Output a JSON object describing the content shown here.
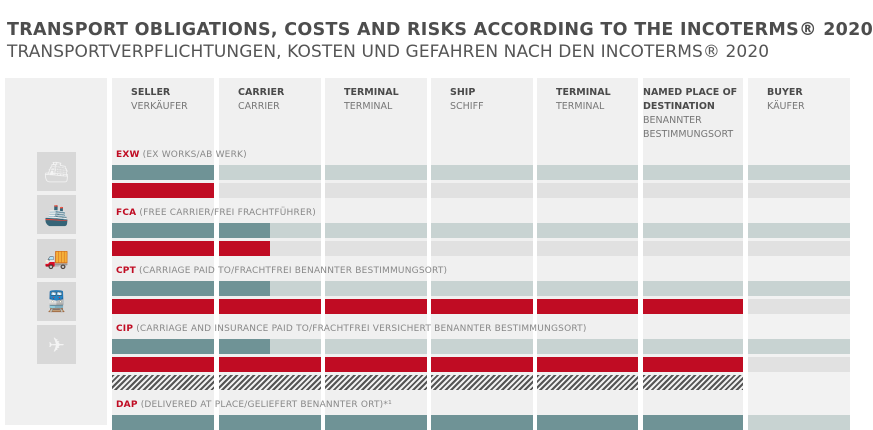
{
  "title": "TRANSPORT OBLIGATIONS, COSTS AND RISKS ACCORDING TO THE INCOTERMS® 2020",
  "subtitle": "TRANSPORTVERPFLICHTUNGEN, KOSTEN UND GEFAHREN NACH DEN INCOTERMS® 2020",
  "colors": {
    "cost": "#6f9396",
    "cost_light": "#c8d3d2",
    "risk": "#c00c23",
    "risk_light": "#e1e1e1",
    "column": "#f0f0f0"
  },
  "columns": [
    {
      "en": "SELLER",
      "de": "VERKÄUFER"
    },
    {
      "en": "CARRIER",
      "de": "CARRIER"
    },
    {
      "en": "TERMINAL",
      "de": "TERMINAL"
    },
    {
      "en": "SHIP",
      "de": "SCHIFF"
    },
    {
      "en": "TERMINAL",
      "de": "TERMINAL"
    },
    {
      "en": "NAMED PLACE OF DESTINATION",
      "de": "BENANNTER BESTIMMUNGSORT"
    },
    {
      "en": "BUYER",
      "de": "KÄUFER"
    }
  ],
  "transport_icons": [
    "ship-icon",
    "ferry-icon",
    "truck-icon",
    "train-icon",
    "airplane-icon"
  ],
  "incoterms": [
    {
      "code": "EXW",
      "desc": " (EX WORKS/AB WERK)",
      "bars": [
        {
          "type": "cost",
          "columns_filled": 1
        },
        {
          "type": "risk",
          "columns_filled": 1
        }
      ]
    },
    {
      "code": "FCA",
      "desc": " (FREE CARRIER/FREI FRACHTFÜHRER)",
      "bars": [
        {
          "type": "cost",
          "columns_filled": 1.5
        },
        {
          "type": "risk",
          "columns_filled": 1.5
        }
      ]
    },
    {
      "code": "CPT",
      "desc": " (CARRIAGE PAID TO/FRACHTFREI BENANNTER BESTIMMUNGSORT)",
      "bars": [
        {
          "type": "cost",
          "columns_filled": 1.5
        },
        {
          "type": "risk",
          "columns_filled": 6
        }
      ]
    },
    {
      "code": "CIP",
      "desc": " (CARRIAGE AND INSURANCE PAID TO/FRACHTFREI VERSICHERT BENANNTER BESTIMMUNGSORT)",
      "bars": [
        {
          "type": "cost",
          "columns_filled": 1.5
        },
        {
          "type": "risk",
          "columns_filled": 6
        },
        {
          "type": "insurance",
          "columns_filled": 6
        }
      ]
    },
    {
      "code": "DAP",
      "desc": " (DELIVERED AT PLACE/GELIEFERT BENANNTER ORT)*¹",
      "bars": [
        {
          "type": "cost",
          "columns_filled": 6
        }
      ]
    }
  ]
}
